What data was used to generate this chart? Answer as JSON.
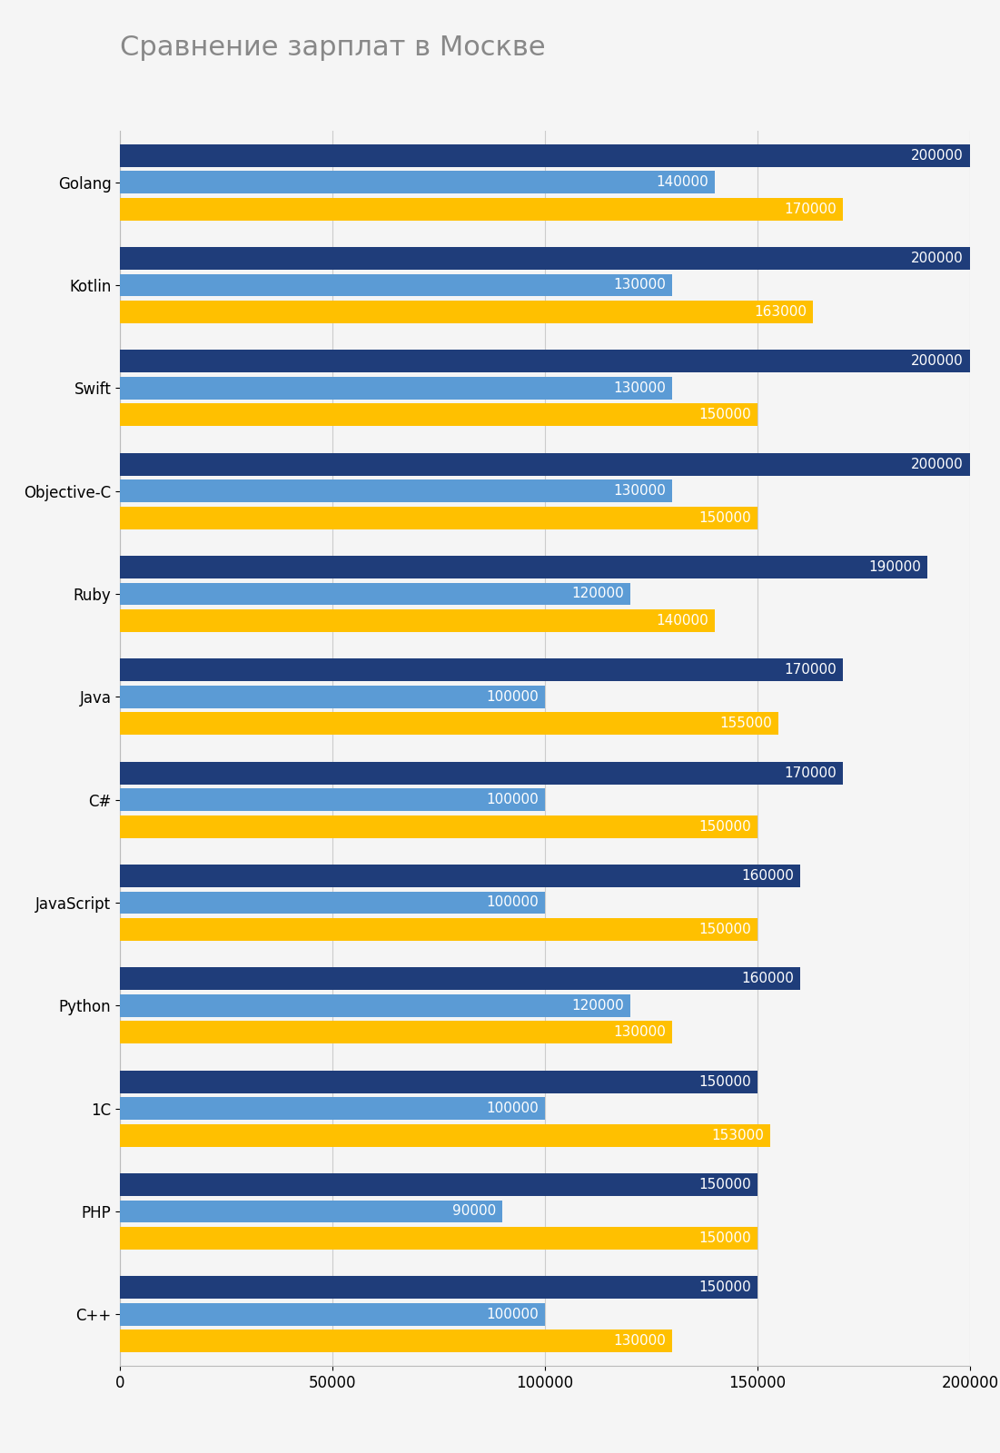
{
  "title": "Сравнение зарплат в Москве",
  "categories": [
    "Golang",
    "Kotlin",
    "Swift",
    "Objective-C",
    "Ruby",
    "Java",
    "C#",
    "JavaScript",
    "Python",
    "1C",
    "PHP",
    "C++"
  ],
  "upper": [
    200000,
    200000,
    200000,
    200000,
    190000,
    170000,
    170000,
    160000,
    160000,
    150000,
    150000,
    150000
  ],
  "lower": [
    140000,
    130000,
    130000,
    130000,
    120000,
    100000,
    100000,
    100000,
    120000,
    100000,
    90000,
    100000
  ],
  "median": [
    170000,
    163000,
    150000,
    150000,
    140000,
    155000,
    150000,
    150000,
    130000,
    153000,
    150000,
    130000
  ],
  "color_upper": "#1f3d7a",
  "color_lower": "#5b9bd5",
  "color_median": "#ffc000",
  "xlim": [
    0,
    200000
  ],
  "xticks": [
    0,
    50000,
    100000,
    150000,
    200000
  ],
  "bar_height": 0.22,
  "bar_gap": 0.04,
  "title_fontsize": 22,
  "tick_fontsize": 12,
  "label_fontsize": 12,
  "value_fontsize": 11,
  "background_color": "#f5f5f5"
}
